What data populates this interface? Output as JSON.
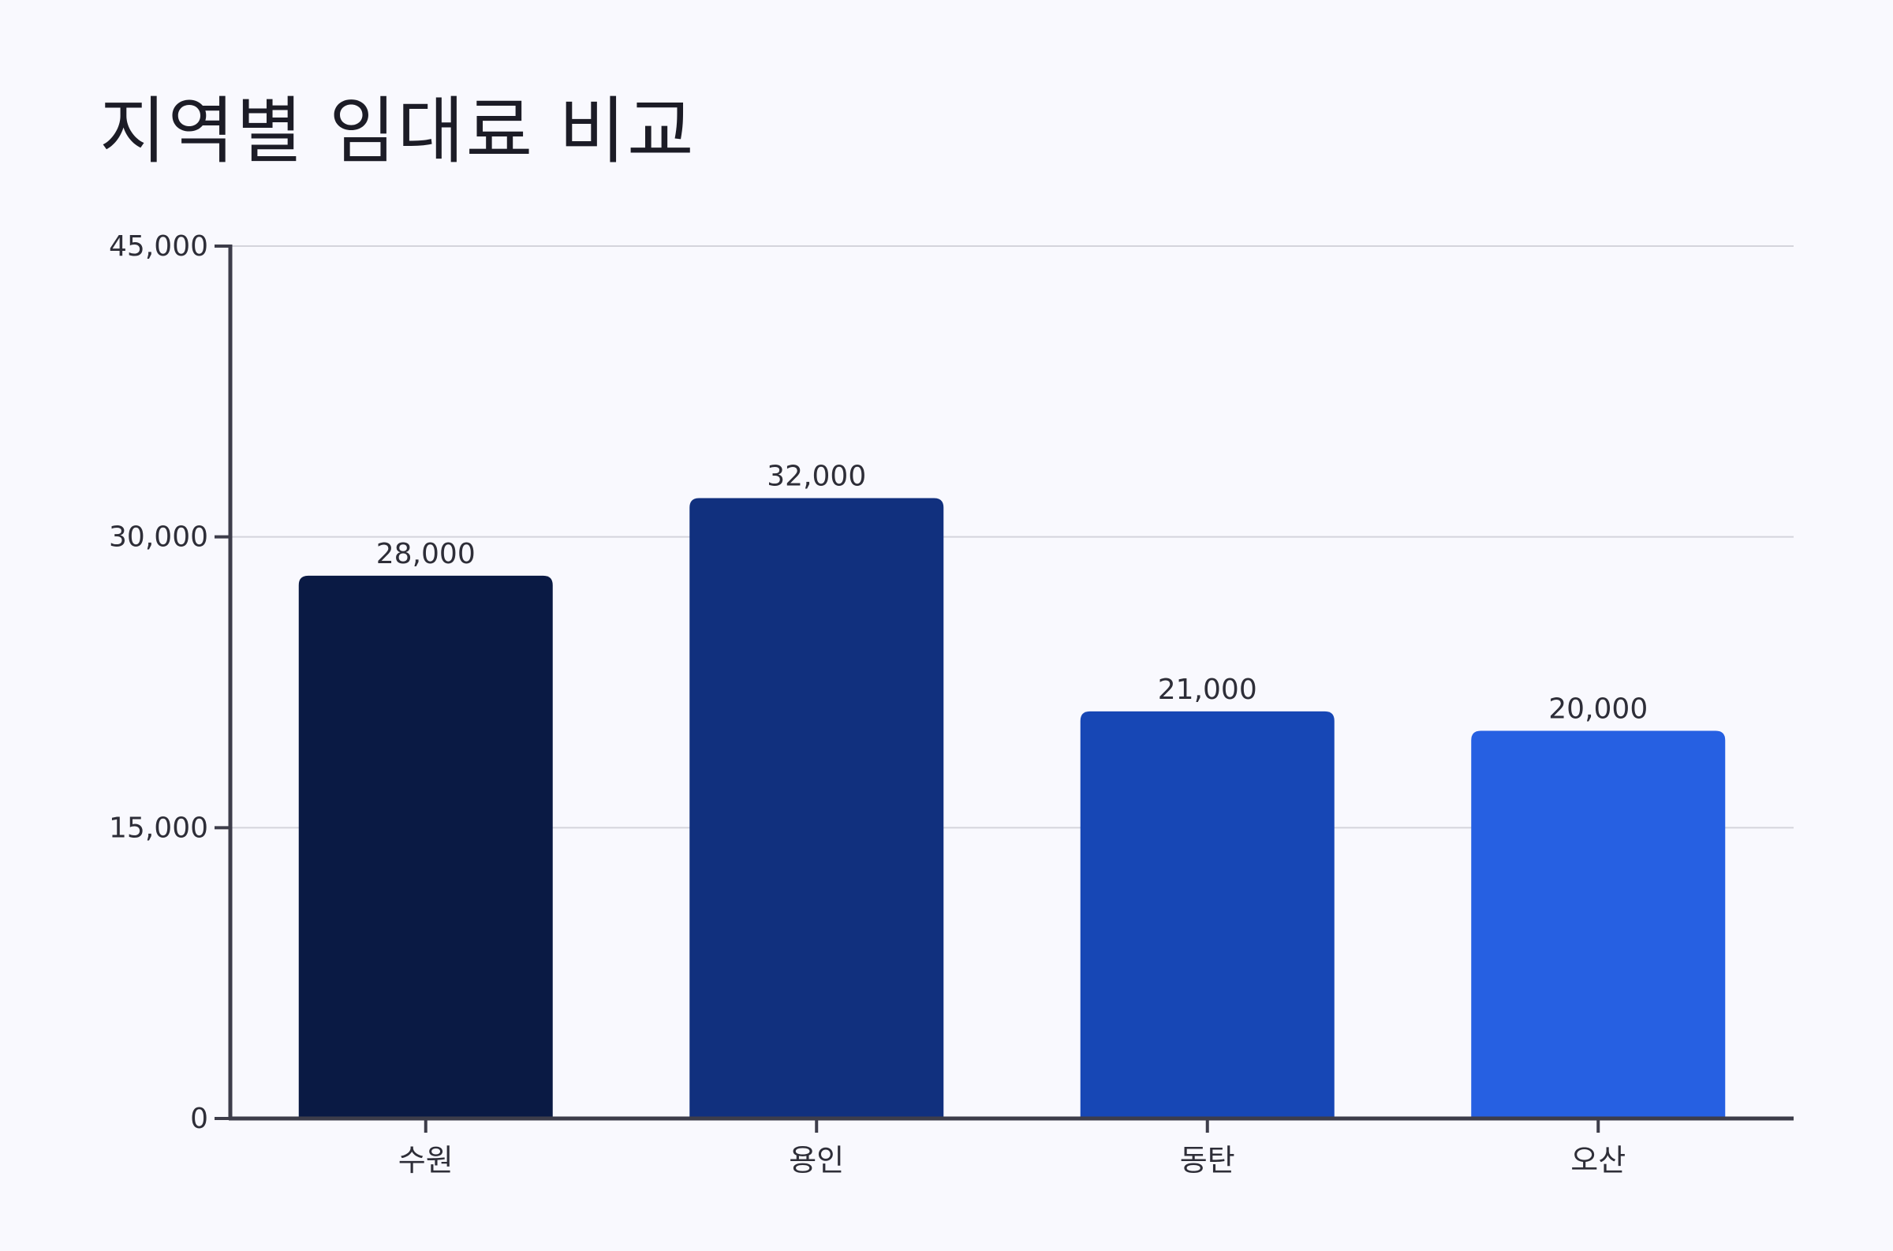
{
  "chart_data": {
    "type": "bar",
    "title": "지역별 임대료 비교",
    "xlabel": "",
    "ylabel": "",
    "categories": [
      "수원",
      "용인",
      "동탄",
      "오산"
    ],
    "values": [
      28000,
      32000,
      21000,
      20000
    ],
    "value_labels": [
      "28,000",
      "32,000",
      "21,000",
      "20,000"
    ],
    "ylim": [
      0,
      45000
    ],
    "yticks": [
      0,
      15000,
      30000,
      45000
    ],
    "ytick_labels": [
      "0",
      "15,000",
      "30,000",
      "45,000"
    ],
    "grid": true,
    "legend": "none",
    "bar_colors": [
      "#0a1a44",
      "#11307e",
      "#1747b5",
      "#2660e2"
    ],
    "axis_color": "#3d3d4a",
    "grid_color": "#d4d4dc"
  }
}
